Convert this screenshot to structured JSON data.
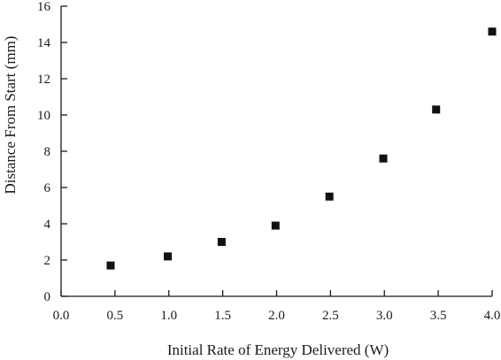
{
  "chart_data": {
    "type": "scatter",
    "xlabel": "Initial Rate of Energy Delivered (W)",
    "ylabel": "Distance From Start (mm)",
    "xlim": [
      0.0,
      4.0
    ],
    "ylim": [
      0,
      16
    ],
    "x_ticks": [
      "0.0",
      "0.5",
      "1.0",
      "1.5",
      "2.0",
      "2.5",
      "3.0",
      "3.5",
      "4.0"
    ],
    "y_ticks": [
      "0",
      "2",
      "4",
      "6",
      "8",
      "10",
      "12",
      "14",
      "16"
    ],
    "grid": false,
    "legend": "none",
    "marker": "square",
    "marker_color": "#111111",
    "points": [
      {
        "x": 0.46,
        "y": 1.7
      },
      {
        "x": 0.99,
        "y": 2.2
      },
      {
        "x": 1.49,
        "y": 3.0
      },
      {
        "x": 1.99,
        "y": 3.9
      },
      {
        "x": 2.49,
        "y": 5.5
      },
      {
        "x": 2.99,
        "y": 7.6
      },
      {
        "x": 3.48,
        "y": 10.3
      },
      {
        "x": 4.0,
        "y": 14.6
      }
    ]
  }
}
